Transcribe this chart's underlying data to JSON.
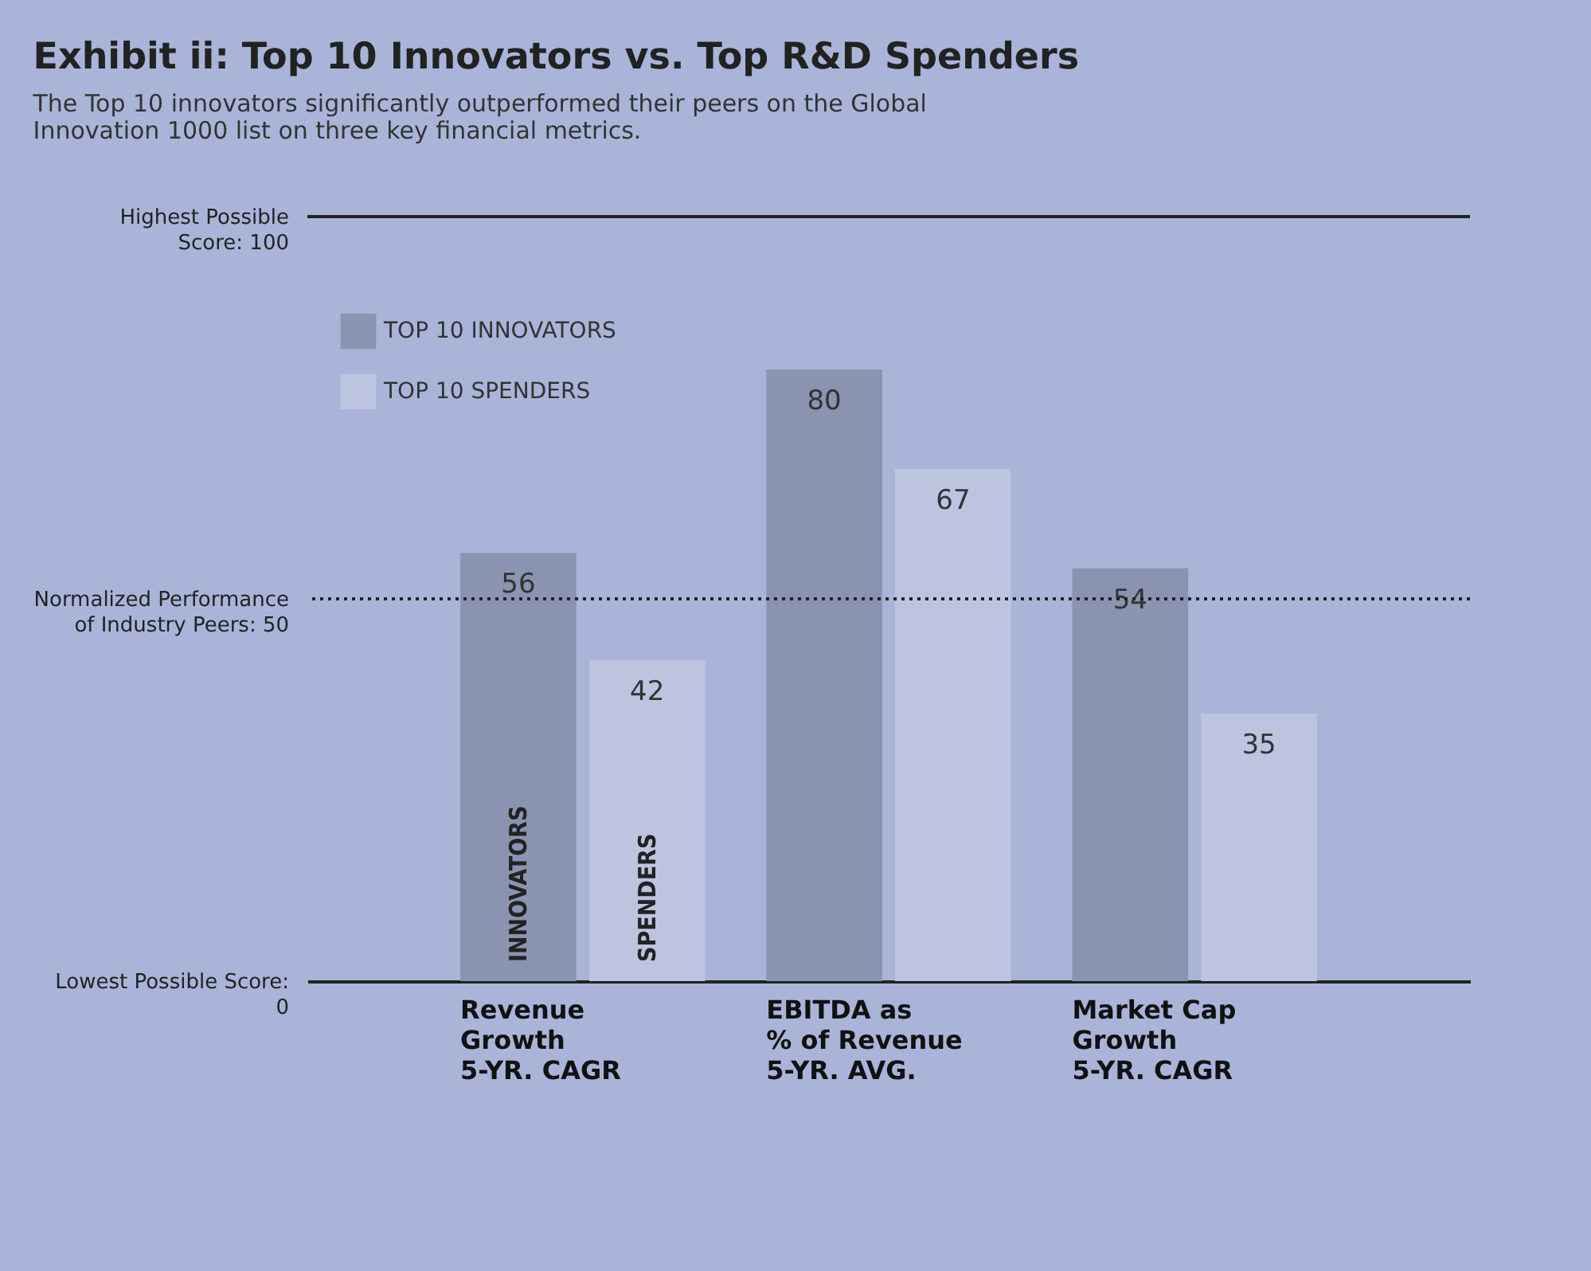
{
  "chart_data": {
    "type": "bar",
    "title": "Exhibit ii: Top 10 Innovators vs. Top R&D Spenders",
    "subtitle": "The Top 10 innovators significantly outperformed their peers on the Global Innovation 1000 list on three key financial metrics.",
    "categories": [
      "Revenue\nGrowth\n5-YR. CAGR",
      "EBITDA as\n% of Revenue\n5-YR. AVG.",
      "Market Cap\nGrowth\n5-YR. CAGR"
    ],
    "series": [
      {
        "name": "TOP 10 INNOVATORS",
        "color": "#8a93b0",
        "values": [
          56,
          80,
          54
        ]
      },
      {
        "name": "TOP 10 SPENDERS",
        "color": "#bcc4e0",
        "values": [
          42,
          67,
          35
        ]
      }
    ],
    "ylim": [
      0,
      100
    ],
    "yticks": [
      {
        "value": 0,
        "label": "Lowest Possible Score: 0"
      },
      {
        "value": 50,
        "label": "Normalized Performance of Industry Peers: 50"
      },
      {
        "value": 100,
        "label": "Highest Possible Score: 100"
      }
    ],
    "ref_lines": [
      {
        "axis": "y",
        "value": 100,
        "line_style": "solid"
      },
      {
        "axis": "y",
        "value": 50,
        "line_style": "dotted"
      }
    ],
    "annotations": [
      "INNOVATORS",
      "SPENDERS"
    ],
    "data_labels": true,
    "grid": false,
    "legend": "top left"
  }
}
